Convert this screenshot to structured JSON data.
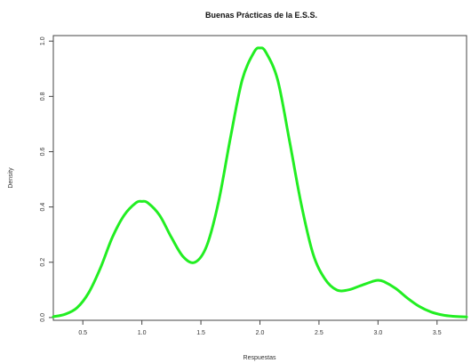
{
  "chart_data": {
    "type": "line",
    "title": "Buenas Prácticas de la E.S.S.",
    "xlabel": "Respuestas",
    "ylabel": "Density",
    "xlim": [
      0.25,
      3.75
    ],
    "ylim": [
      -0.01,
      1.02
    ],
    "xticks": [
      0.5,
      1.0,
      1.5,
      2.0,
      2.5,
      3.0,
      3.5
    ],
    "xtick_labels": [
      "0.5",
      "1.0",
      "1.5",
      "2.0",
      "2.5",
      "3.0",
      "3.5"
    ],
    "yticks": [
      0.0,
      0.2,
      0.4,
      0.6,
      0.8,
      1.0
    ],
    "ytick_labels": [
      "0.0",
      "0.2",
      "0.4",
      "0.6",
      "0.8",
      "1.0"
    ],
    "grid": false,
    "box": true,
    "line_color": "#22ee22",
    "series": [
      {
        "x": [
          0.25,
          0.35,
          0.45,
          0.55,
          0.65,
          0.75,
          0.85,
          0.95,
          1.0,
          1.05,
          1.15,
          1.25,
          1.35,
          1.45,
          1.55,
          1.65,
          1.75,
          1.85,
          1.95,
          2.0,
          2.05,
          2.15,
          2.25,
          2.35,
          2.45,
          2.55,
          2.65,
          2.75,
          2.85,
          2.95,
          3.0,
          3.05,
          3.15,
          3.25,
          3.35,
          3.45,
          3.55,
          3.65,
          3.75
        ],
        "y": [
          0.003,
          0.012,
          0.035,
          0.09,
          0.18,
          0.29,
          0.37,
          0.415,
          0.42,
          0.415,
          0.37,
          0.29,
          0.22,
          0.2,
          0.26,
          0.42,
          0.65,
          0.86,
          0.96,
          0.975,
          0.96,
          0.86,
          0.64,
          0.41,
          0.23,
          0.14,
          0.1,
          0.1,
          0.115,
          0.13,
          0.135,
          0.13,
          0.105,
          0.07,
          0.04,
          0.02,
          0.009,
          0.004,
          0.002
        ]
      }
    ]
  }
}
